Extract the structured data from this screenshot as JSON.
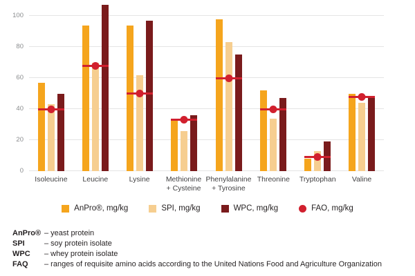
{
  "chart_data": {
    "type": "bar",
    "title": "",
    "xlabel": "",
    "ylabel": "",
    "ylim": [
      0,
      100
    ],
    "yticks": [
      0,
      20,
      40,
      60,
      80,
      100
    ],
    "grid": true,
    "legend_position": "bottom",
    "categories": [
      [
        "Isoleucine"
      ],
      [
        "Leucine"
      ],
      [
        "Lysine"
      ],
      [
        "Methionine",
        "+ Cysteine"
      ],
      [
        "Phenylalanine",
        "+ Tyrosine"
      ],
      [
        "Threonine"
      ],
      [
        "Tryptophan"
      ],
      [
        "Valine"
      ]
    ],
    "series": [
      {
        "name": "AnPro®, mg/kg",
        "color": "#F5A51D",
        "values": [
          57,
          94,
          94,
          33,
          98,
          52,
          8,
          50
        ]
      },
      {
        "name": "SPI, mg/kg",
        "color": "#F6CE90",
        "values": [
          43,
          70,
          62,
          26,
          83,
          34,
          13,
          44
        ]
      },
      {
        "name": "WPC, mg/kg",
        "color": "#7A1B1C",
        "values": [
          50,
          107,
          97,
          36,
          75,
          47,
          19,
          48
        ]
      }
    ],
    "fao_markers": {
      "name": "FAO, mg/kg",
      "color": "#D1202E",
      "values": [
        40,
        68,
        50,
        33,
        60,
        40,
        9,
        48
      ]
    }
  },
  "colors": {
    "gridline": "#E4E4E4",
    "axis_text": "#8A8C8E",
    "category_text": "#414042",
    "body_text": "#231F20"
  },
  "footer": {
    "rows": [
      {
        "term": "AnPro®",
        "desc": "– yeast protein"
      },
      {
        "term": "SPI",
        "desc": "– soy protein isolate"
      },
      {
        "term": "WPC",
        "desc": "– whey protein isolate"
      },
      {
        "term": "FAQ",
        "desc": "– ranges of requisite amino acids according to the United Nations Food and Agriculture Organization"
      }
    ]
  }
}
